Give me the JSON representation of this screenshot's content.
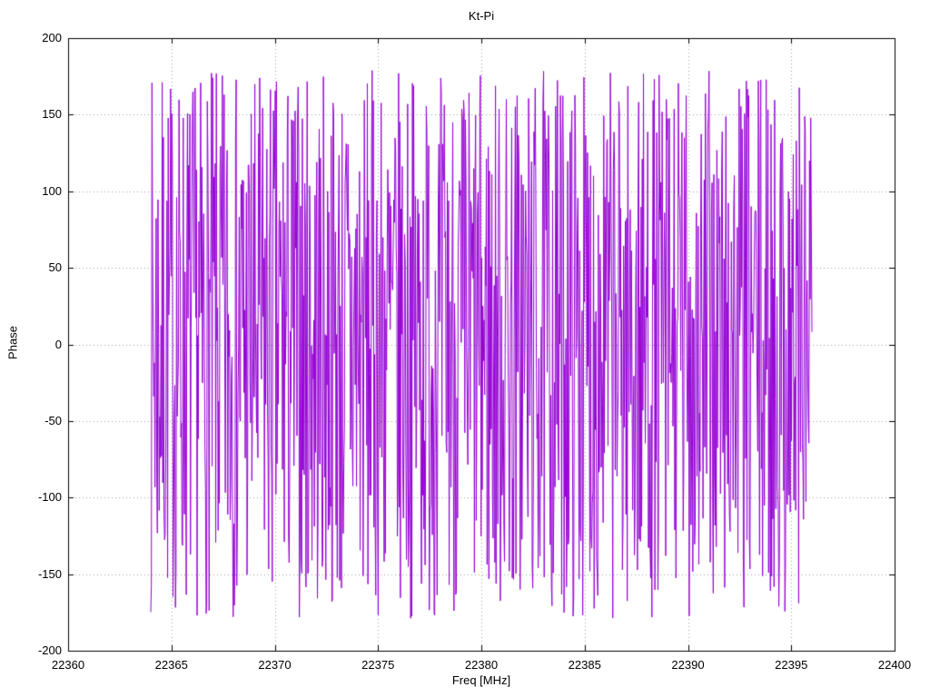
{
  "chart_data": {
    "type": "line",
    "title": "Kt-Pi",
    "xlabel": "Freq [MHz]",
    "ylabel": "Phase",
    "xlim": [
      22360,
      22400
    ],
    "ylim": [
      -200,
      200
    ],
    "x_ticks": [
      22360,
      22365,
      22370,
      22375,
      22380,
      22385,
      22390,
      22395,
      22400
    ],
    "y_ticks": [
      -200,
      -150,
      -100,
      -50,
      0,
      50,
      100,
      150,
      200
    ],
    "grid": true,
    "grid_style": "dotted",
    "grid_color": "#a0a0a0",
    "border_color": "#000000",
    "line_color": "#9400d3",
    "legend": "none",
    "series": [
      {
        "name": "phase",
        "description": "Wrapped interferometric phase noise, uniformly distributed between -180 and +180 degrees across the sampled band",
        "synthesis": {
          "kind": "wrapped-random-phase",
          "x_start": 22364.0,
          "x_end": 22396.0,
          "n_points": 1100,
          "y_min": -179,
          "y_max": 179,
          "seed": 7
        }
      }
    ]
  }
}
